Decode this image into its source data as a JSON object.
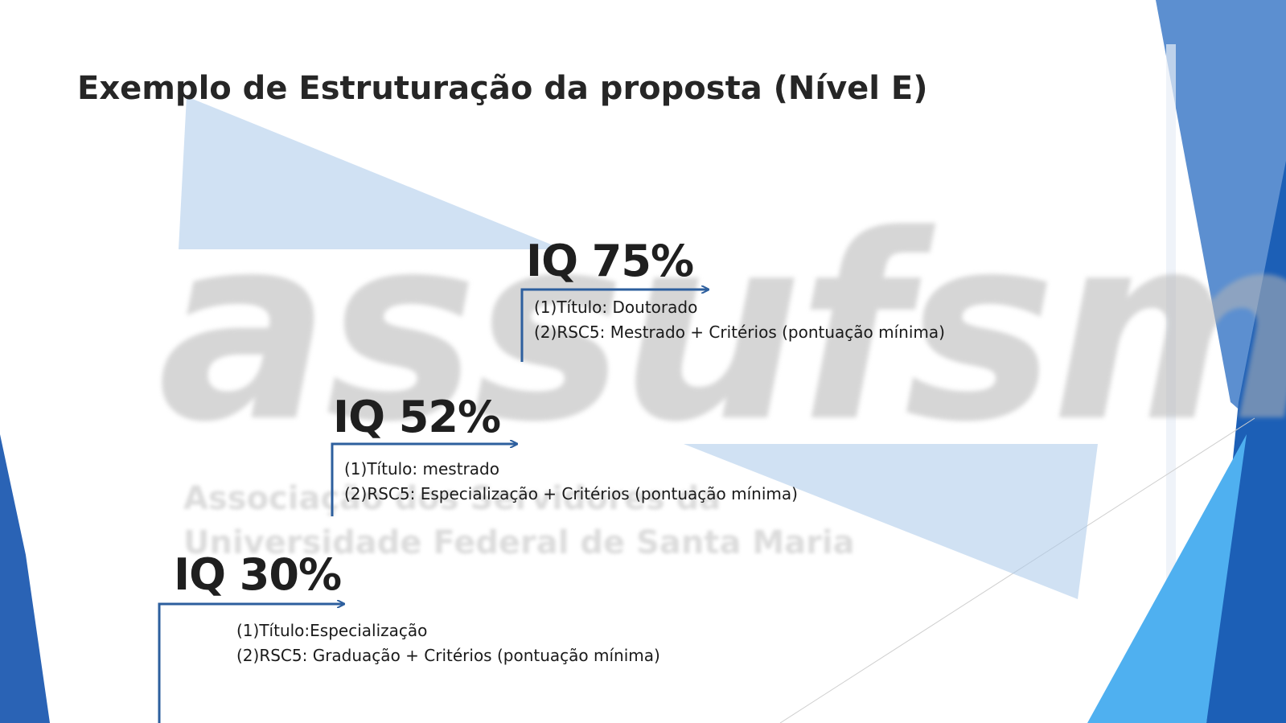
{
  "title": "Exemplo de Estruturação da proposta (Nível E)",
  "watermark": {
    "logo_text": "assufsm",
    "line1": "Associação dos Servidores da",
    "line2": "Universidade Federal de Santa Maria"
  },
  "steps": [
    {
      "value": "IQ 75%",
      "lines": [
        "(1)Título: Doutorado",
        "(2)RSC5: Mestrado + Critérios (pontuação mínima)"
      ]
    },
    {
      "value": "IQ 52%",
      "lines": [
        "(1)Título: mestrado",
        "(2)RSC5: Especialização + Critérios (pontuação mínima)"
      ]
    },
    {
      "value": "IQ 30%",
      "lines": [
        "(1)Título:Especialização",
        "(2)RSC5: Graduação + Critérios (pontuação mínima)"
      ]
    }
  ],
  "colors": {
    "arrow": "#2d5f9e",
    "accent_dark": "#1c5fb6",
    "accent_light": "#4fb0f0",
    "watermark_blue": "#a9c9ea"
  }
}
